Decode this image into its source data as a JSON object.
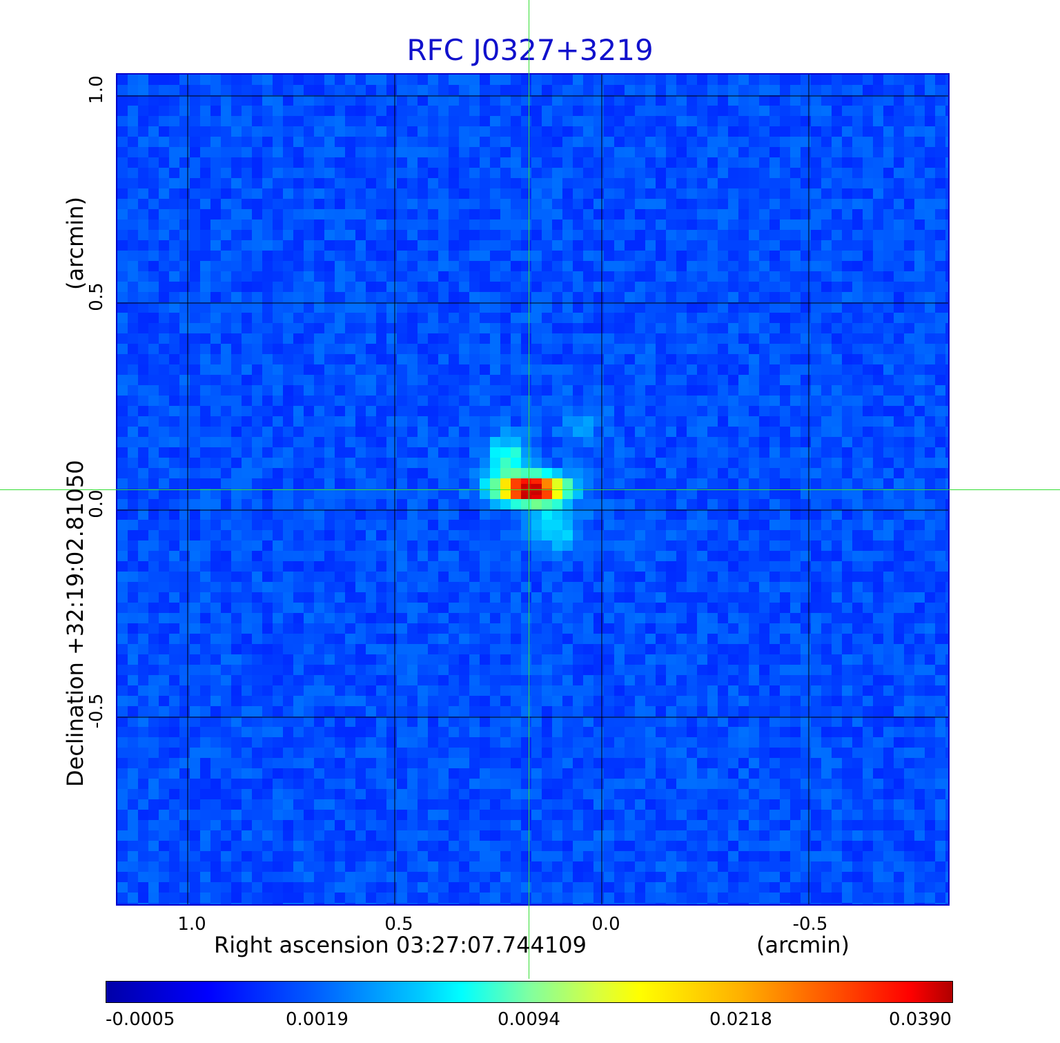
{
  "title": "RFC J0327+3219",
  "x_axis": {
    "label": "Right ascension  03:27:07.744109",
    "unit": "(arcmin)",
    "ticks": [
      "1.0",
      "0.5",
      "0.0",
      "-0.5"
    ]
  },
  "y_axis": {
    "label": "Declination  +32:19:02.81050",
    "unit": "(arcmin)",
    "ticks": [
      "1.0",
      "0.5",
      "0.0",
      "-0.5"
    ]
  },
  "colorbar": {
    "colormap": "jet",
    "ticks": [
      "-0.0005",
      "0.0019",
      "0.0094",
      "0.0218",
      "0.0390"
    ]
  },
  "colors": {
    "title": "#1111cc",
    "frame": "#0000cc",
    "crosshair": "#33dd33",
    "grid": "#000000"
  },
  "source": {
    "offset_x_arcmin": 0.17,
    "offset_y_arcmin": 0.05,
    "peak_value": 0.039
  }
}
